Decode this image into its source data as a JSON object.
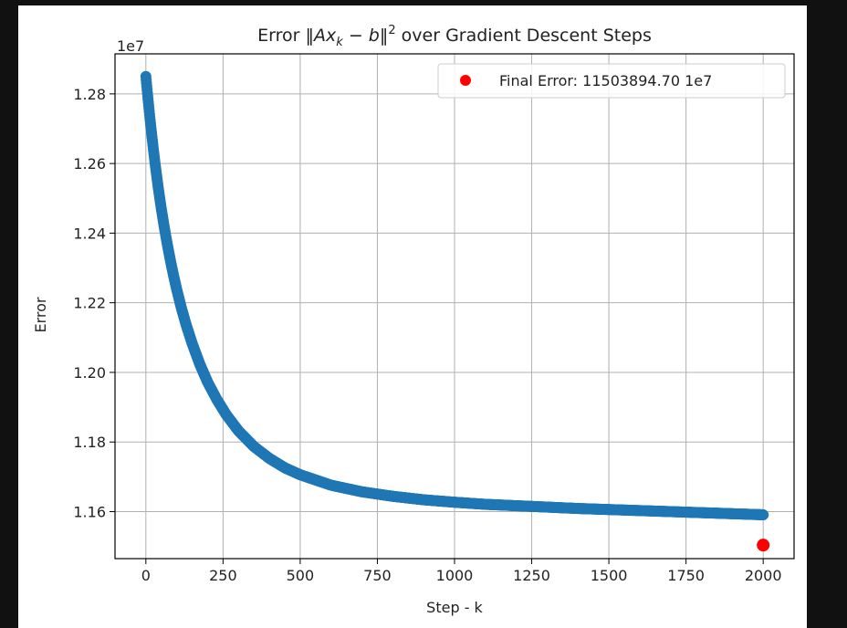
{
  "chart_data": {
    "type": "scatter",
    "title": "Error ‖Axₖ − b‖² over Gradient Descent Steps",
    "title_parts": {
      "prefix": "Error ",
      "norm_open": "‖",
      "A": "A",
      "x": "x",
      "sub": "k",
      "minus": " − ",
      "b": "b",
      "norm_close": "‖",
      "sup": "2",
      "suffix": " over Gradient Descent Steps"
    },
    "xlabel": "Step - k",
    "ylabel": "Error",
    "y_offset_label": "1e7",
    "xlim": [
      -100,
      2100
    ],
    "ylim": [
      1.1465,
      1.2915
    ],
    "xticks": [
      0,
      250,
      500,
      750,
      1000,
      1250,
      1500,
      1750,
      2000
    ],
    "xtick_labels": [
      "0",
      "250",
      "500",
      "750",
      "1000",
      "1250",
      "1500",
      "1750",
      "2000"
    ],
    "yticks": [
      1.16,
      1.18,
      1.2,
      1.22,
      1.24,
      1.26,
      1.28
    ],
    "ytick_labels": [
      "1.16",
      "1.18",
      "1.20",
      "1.22",
      "1.24",
      "1.26",
      "1.28"
    ],
    "grid": true,
    "legend_position": "top-right",
    "series": [
      {
        "color": "#1f77b4",
        "x": [
          0,
          5,
          10,
          15,
          20,
          25,
          30,
          40,
          50,
          60,
          70,
          80,
          90,
          100,
          115,
          130,
          150,
          175,
          200,
          230,
          260,
          300,
          350,
          400,
          450,
          500,
          600,
          700,
          800,
          900,
          1000,
          1100,
          1200,
          1300,
          1400,
          1500,
          1600,
          1700,
          1800,
          1900,
          2000
        ],
        "y": [
          1.285,
          1.2803,
          1.2758,
          1.2715,
          1.2675,
          1.2636,
          1.2599,
          1.2531,
          1.247,
          1.2415,
          1.2365,
          1.2319,
          1.2277,
          1.2238,
          1.2185,
          1.2138,
          1.2083,
          1.2023,
          1.1972,
          1.1922,
          1.1879,
          1.1832,
          1.1787,
          1.1753,
          1.1726,
          1.1706,
          1.1676,
          1.1657,
          1.1644,
          1.1634,
          1.1627,
          1.1621,
          1.1617,
          1.1613,
          1.1609,
          1.1606,
          1.1603,
          1.16,
          1.1597,
          1.1594,
          1.1591
        ]
      },
      {
        "name": "Final Error: 11503894.70 1e7",
        "color": "#ff0000",
        "x": [
          2000
        ],
        "y": [
          1.1503894
        ]
      }
    ]
  }
}
